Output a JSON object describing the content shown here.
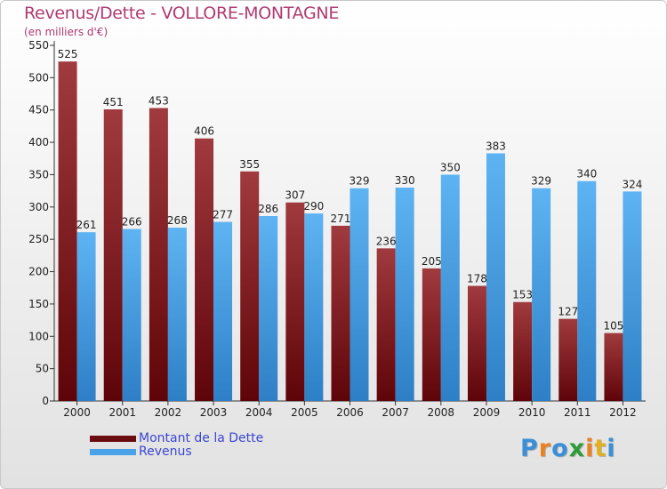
{
  "title": "Revenus/Dette - VOLLORE-MONTAGNE",
  "subtitle": "(en milliers d'€)",
  "brand": {
    "letters": [
      "P",
      "r",
      "o",
      "x",
      "i",
      "t",
      "i"
    ],
    "colors": [
      "#3a8fd6",
      "#e8821e",
      "#3a8fd6",
      "#2e9b3a",
      "#e8821e",
      "#e0b020",
      "#3a8fd6"
    ]
  },
  "chart_data": {
    "type": "bar",
    "categories": [
      "2000",
      "2001",
      "2002",
      "2003",
      "2004",
      "2005",
      "2006",
      "2007",
      "2008",
      "2009",
      "2010",
      "2011",
      "2012"
    ],
    "series": [
      {
        "name": "Montant de la Dette",
        "values": [
          525,
          451,
          453,
          406,
          355,
          307,
          271,
          236,
          205,
          178,
          153,
          127,
          105
        ],
        "color": "#7a1518"
      },
      {
        "name": "Revenus",
        "values": [
          261,
          266,
          268,
          277,
          286,
          290,
          329,
          330,
          350,
          383,
          329,
          340,
          324
        ],
        "color": "#4aa3e8"
      }
    ],
    "yticks": [
      0,
      50,
      100,
      150,
      200,
      250,
      300,
      350,
      400,
      450,
      500,
      550
    ],
    "ylim": [
      0,
      550
    ],
    "grid": false,
    "legend": "bottom-left"
  }
}
